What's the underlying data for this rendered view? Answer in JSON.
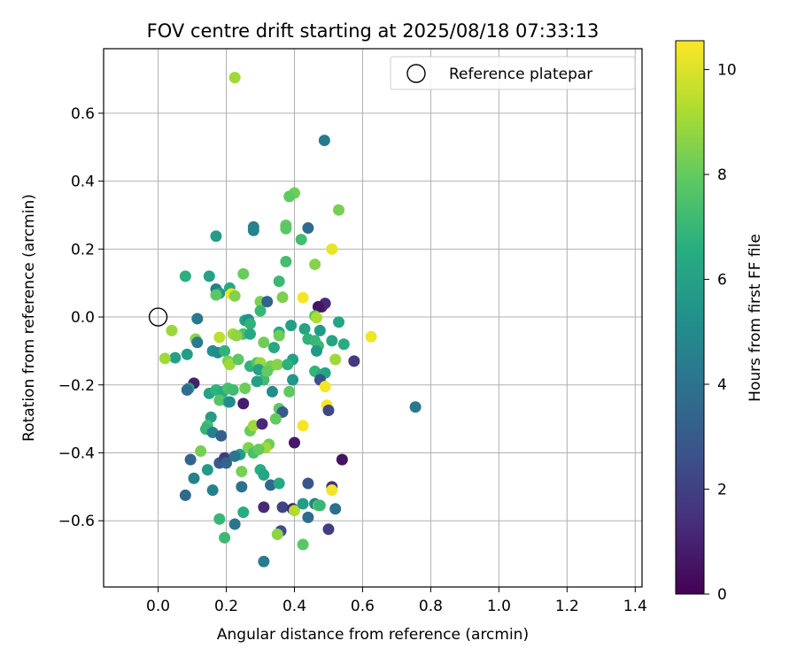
{
  "chart_data": {
    "type": "scatter",
    "title": "FOV centre drift starting at 2025/08/18 07:33:13",
    "xlabel": "Angular distance from reference (arcmin)",
    "ylabel": "Rotation from reference (arcmin)",
    "xlim": [
      -0.16,
      1.42
    ],
    "ylim": [
      -0.795,
      0.79
    ],
    "xticks": [
      0.0,
      0.2,
      0.4,
      0.6,
      0.8,
      1.0,
      1.2,
      1.4
    ],
    "xtick_labels": [
      "0.0",
      "0.2",
      "0.4",
      "0.6",
      "0.8",
      "1.0",
      "1.2",
      "1.4"
    ],
    "yticks": [
      -0.6,
      -0.4,
      -0.2,
      0.0,
      0.2,
      0.4,
      0.6
    ],
    "ytick_labels": [
      "−0.6",
      "−0.4",
      "−0.2",
      "0.0",
      "0.2",
      "0.4",
      "0.6"
    ],
    "grid": true,
    "legend": {
      "position": "top-right",
      "entries": [
        "Reference platepar"
      ]
    },
    "reference": {
      "x": 0.0,
      "y": 0.0,
      "label": "Reference platepar"
    },
    "colorbar": {
      "label": "Hours from first FF file",
      "range": [
        0,
        10.55
      ],
      "ticks": [
        0,
        2,
        4,
        6,
        8,
        10
      ],
      "tick_labels": [
        "0",
        "2",
        "4",
        "6",
        "8",
        "10"
      ],
      "colormap": "viridis"
    },
    "points": [
      [
        0.225,
        0.705,
        9.0
      ],
      [
        0.488,
        0.52,
        4.3
      ],
      [
        0.4,
        0.365,
        8.2
      ],
      [
        0.385,
        0.355,
        7.9
      ],
      [
        0.53,
        0.315,
        8.3
      ],
      [
        0.28,
        0.265,
        4.6
      ],
      [
        0.28,
        0.255,
        4.7
      ],
      [
        0.375,
        0.27,
        8.0
      ],
      [
        0.375,
        0.26,
        7.8
      ],
      [
        0.44,
        0.262,
        3.7
      ],
      [
        0.17,
        0.238,
        5.8
      ],
      [
        0.42,
        0.228,
        7.3
      ],
      [
        0.51,
        0.2,
        10.2
      ],
      [
        0.375,
        0.163,
        7.3
      ],
      [
        0.46,
        0.155,
        8.6
      ],
      [
        0.25,
        0.127,
        8.1
      ],
      [
        0.08,
        0.12,
        6.7
      ],
      [
        0.15,
        0.12,
        6.1
      ],
      [
        0.355,
        0.105,
        7.1
      ],
      [
        0.17,
        0.082,
        4.4
      ],
      [
        0.21,
        0.085,
        6.3
      ],
      [
        0.18,
        0.07,
        5.6
      ],
      [
        0.215,
        0.068,
        10.4
      ],
      [
        0.17,
        0.065,
        7.8
      ],
      [
        0.225,
        0.062,
        8.5
      ],
      [
        0.3,
        0.045,
        8.4
      ],
      [
        0.32,
        0.045,
        3.3
      ],
      [
        0.3,
        0.018,
        7.0
      ],
      [
        0.365,
        0.058,
        8.4
      ],
      [
        0.425,
        0.057,
        10.4
      ],
      [
        0.48,
        0.03,
        0.8
      ],
      [
        0.49,
        0.04,
        1.2
      ],
      [
        0.47,
        0.03,
        0.6
      ],
      [
        0.115,
        -0.005,
        4.2
      ],
      [
        0.46,
        0.003,
        7.8
      ],
      [
        0.465,
        -0.002,
        9.2
      ],
      [
        0.53,
        -0.015,
        6.2
      ],
      [
        0.255,
        -0.01,
        6.1
      ],
      [
        0.265,
        -0.008,
        5.2
      ],
      [
        0.27,
        -0.02,
        6.8
      ],
      [
        0.04,
        -0.04,
        8.9
      ],
      [
        0.25,
        -0.05,
        7.4
      ],
      [
        0.27,
        -0.05,
        6.3
      ],
      [
        0.39,
        -0.025,
        5.9
      ],
      [
        0.43,
        -0.035,
        6.1
      ],
      [
        0.475,
        -0.04,
        5.7
      ],
      [
        0.355,
        -0.045,
        6.4
      ],
      [
        0.355,
        -0.055,
        8.2
      ],
      [
        0.22,
        -0.05,
        9.1
      ],
      [
        0.23,
        -0.055,
        8.7
      ],
      [
        0.18,
        -0.06,
        9.5
      ],
      [
        0.625,
        -0.058,
        10.3
      ],
      [
        0.11,
        -0.065,
        8.7
      ],
      [
        0.115,
        -0.075,
        4.3
      ],
      [
        0.44,
        -0.065,
        6.8
      ],
      [
        0.46,
        -0.07,
        7.0
      ],
      [
        0.51,
        -0.07,
        6.2
      ],
      [
        0.545,
        -0.08,
        6.5
      ],
      [
        0.31,
        -0.075,
        8.2
      ],
      [
        0.47,
        -0.085,
        7.1
      ],
      [
        0.34,
        -0.09,
        6.3
      ],
      [
        0.16,
        -0.1,
        5.2
      ],
      [
        0.175,
        -0.105,
        5.0
      ],
      [
        0.195,
        -0.1,
        6.8
      ],
      [
        0.085,
        -0.11,
        5.8
      ],
      [
        0.05,
        -0.12,
        5.9
      ],
      [
        0.02,
        -0.122,
        9.0
      ],
      [
        0.465,
        -0.1,
        5.6
      ],
      [
        0.52,
        -0.125,
        9.0
      ],
      [
        0.575,
        -0.13,
        1.7
      ],
      [
        0.395,
        -0.125,
        5.9
      ],
      [
        0.205,
        -0.13,
        8.4
      ],
      [
        0.21,
        -0.14,
        9.0
      ],
      [
        0.235,
        -0.125,
        7.8
      ],
      [
        0.27,
        -0.145,
        6.8
      ],
      [
        0.29,
        -0.135,
        7.6
      ],
      [
        0.3,
        -0.135,
        8.9
      ],
      [
        0.33,
        -0.145,
        8.3
      ],
      [
        0.35,
        -0.14,
        8.6
      ],
      [
        0.38,
        -0.14,
        6.7
      ],
      [
        0.295,
        -0.155,
        6.0
      ],
      [
        0.46,
        -0.16,
        6.9
      ],
      [
        0.48,
        -0.17,
        6.5
      ],
      [
        0.49,
        -0.165,
        6.2
      ],
      [
        0.475,
        -0.185,
        2.6
      ],
      [
        0.31,
        -0.185,
        7.2
      ],
      [
        0.32,
        -0.16,
        8.0
      ],
      [
        0.29,
        -0.19,
        6.0
      ],
      [
        0.395,
        -0.185,
        5.5
      ],
      [
        0.49,
        -0.205,
        10.4
      ],
      [
        0.105,
        -0.195,
        0.9
      ],
      [
        0.09,
        -0.21,
        6.0
      ],
      [
        0.085,
        -0.215,
        3.8
      ],
      [
        0.15,
        -0.225,
        6.1
      ],
      [
        0.17,
        -0.215,
        6.8
      ],
      [
        0.19,
        -0.22,
        6.5
      ],
      [
        0.205,
        -0.21,
        7.4
      ],
      [
        0.22,
        -0.215,
        7.2
      ],
      [
        0.18,
        -0.245,
        7.7
      ],
      [
        0.205,
        -0.25,
        6.9
      ],
      [
        0.21,
        -0.25,
        5.0
      ],
      [
        0.255,
        -0.21,
        8.1
      ],
      [
        0.335,
        -0.22,
        5.1
      ],
      [
        0.385,
        -0.22,
        7.9
      ],
      [
        0.495,
        -0.26,
        10.4
      ],
      [
        0.25,
        -0.255,
        0.8
      ],
      [
        0.5,
        -0.275,
        2.2
      ],
      [
        0.755,
        -0.265,
        4.2
      ],
      [
        0.355,
        -0.27,
        7.8
      ],
      [
        0.365,
        -0.28,
        3.0
      ],
      [
        0.345,
        -0.3,
        8.0
      ],
      [
        0.155,
        -0.295,
        5.8
      ],
      [
        0.145,
        -0.32,
        7.3
      ],
      [
        0.14,
        -0.33,
        6.9
      ],
      [
        0.16,
        -0.34,
        4.6
      ],
      [
        0.27,
        -0.335,
        8.1
      ],
      [
        0.28,
        -0.32,
        9.0
      ],
      [
        0.305,
        -0.315,
        1.2
      ],
      [
        0.425,
        -0.32,
        10.4
      ],
      [
        0.24,
        -0.405,
        5.8
      ],
      [
        0.185,
        -0.35,
        3.2
      ],
      [
        0.325,
        -0.375,
        8.2
      ],
      [
        0.315,
        -0.385,
        9.0
      ],
      [
        0.265,
        -0.385,
        8.5
      ],
      [
        0.28,
        -0.4,
        7.4
      ],
      [
        0.295,
        -0.39,
        8.0
      ],
      [
        0.4,
        -0.37,
        0.7
      ],
      [
        0.54,
        -0.42,
        0.5
      ],
      [
        0.125,
        -0.395,
        8.3
      ],
      [
        0.095,
        -0.42,
        3.4
      ],
      [
        0.18,
        -0.43,
        3.0
      ],
      [
        0.195,
        -0.415,
        1.8
      ],
      [
        0.2,
        -0.43,
        3.4
      ],
      [
        0.225,
        -0.41,
        4.1
      ],
      [
        0.145,
        -0.45,
        5.7
      ],
      [
        0.105,
        -0.475,
        4.6
      ],
      [
        0.245,
        -0.455,
        8.3
      ],
      [
        0.3,
        -0.45,
        6.5
      ],
      [
        0.31,
        -0.465,
        6.2
      ],
      [
        0.33,
        -0.495,
        3.6
      ],
      [
        0.355,
        -0.49,
        6.3
      ],
      [
        0.365,
        -0.56,
        2.1
      ],
      [
        0.36,
        -0.63,
        2.5
      ],
      [
        0.16,
        -0.51,
        4.6
      ],
      [
        0.08,
        -0.525,
        3.6
      ],
      [
        0.245,
        -0.5,
        3.9
      ],
      [
        0.44,
        -0.49,
        2.8
      ],
      [
        0.51,
        -0.5,
        1.5
      ],
      [
        0.51,
        -0.51,
        10.4
      ],
      [
        0.25,
        -0.575,
        6.5
      ],
      [
        0.225,
        -0.61,
        4.1
      ],
      [
        0.18,
        -0.595,
        7.0
      ],
      [
        0.195,
        -0.65,
        7.1
      ],
      [
        0.31,
        -0.56,
        1.2
      ],
      [
        0.395,
        -0.565,
        3.0
      ],
      [
        0.395,
        -0.565,
        1.0
      ],
      [
        0.4,
        -0.57,
        9.3
      ],
      [
        0.425,
        -0.55,
        5.8
      ],
      [
        0.44,
        -0.59,
        3.8
      ],
      [
        0.46,
        -0.55,
        4.6
      ],
      [
        0.47,
        -0.555,
        7.8
      ],
      [
        0.475,
        -0.555,
        7.0
      ],
      [
        0.52,
        -0.565,
        3.8
      ],
      [
        0.5,
        -0.625,
        1.9
      ],
      [
        0.31,
        -0.72,
        4.4
      ],
      [
        0.35,
        -0.64,
        8.7
      ],
      [
        0.425,
        -0.67,
        7.8
      ]
    ]
  }
}
